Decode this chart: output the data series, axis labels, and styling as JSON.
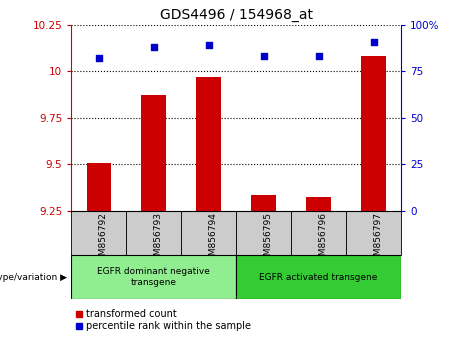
{
  "title": "GDS4496 / 154968_at",
  "categories": [
    "GSM856792",
    "GSM856793",
    "GSM856794",
    "GSM856795",
    "GSM856796",
    "GSM856797"
  ],
  "bar_values": [
    9.504,
    9.872,
    9.97,
    9.332,
    9.323,
    10.08
  ],
  "percentile_values": [
    82,
    88,
    89,
    83,
    83,
    91
  ],
  "ylim_left": [
    9.25,
    10.25
  ],
  "ylim_right": [
    0,
    100
  ],
  "yticks_left": [
    9.25,
    9.5,
    9.75,
    10.0,
    10.25
  ],
  "yticks_right": [
    0,
    25,
    50,
    75,
    100
  ],
  "ytick_labels_left": [
    "9.25",
    "9.5",
    "9.75",
    "10",
    "10.25"
  ],
  "ytick_labels_right": [
    "0",
    "25",
    "50",
    "75",
    "100%"
  ],
  "bar_color": "#cc0000",
  "dot_color": "#0000cc",
  "group1_label": "EGFR dominant negative\ntransgene",
  "group2_label": "EGFR activated transgene",
  "group1_color": "#90ee90",
  "group2_color": "#33cc33",
  "group1_indices": [
    0,
    1,
    2
  ],
  "group2_indices": [
    3,
    4,
    5
  ],
  "bottom_label": "genotype/variation",
  "legend1": "transformed count",
  "legend2": "percentile rank within the sample",
  "title_fontsize": 10,
  "tick_fontsize": 7.5,
  "label_fontsize": 7.5,
  "sample_bg_color": "#cccccc",
  "plot_bg_color": "#ffffff",
  "fig_bg_color": "#ffffff"
}
